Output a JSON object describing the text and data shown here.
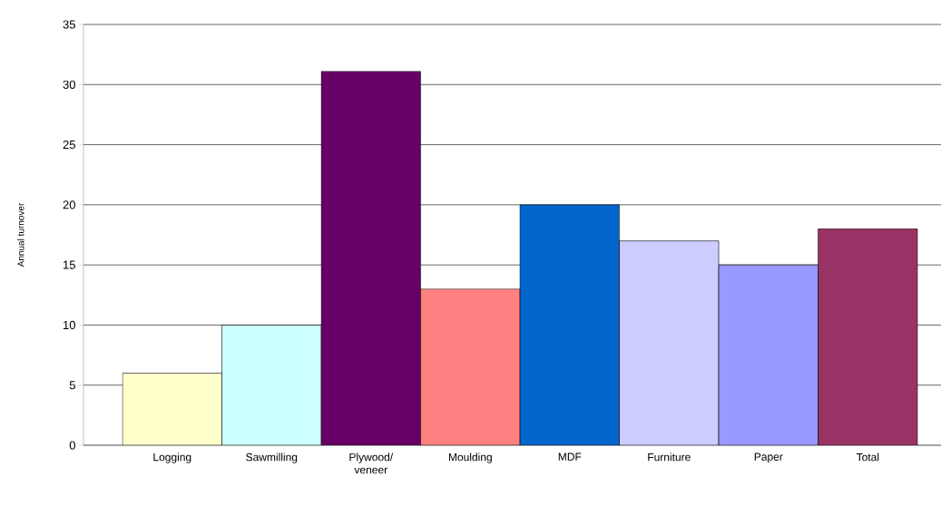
{
  "chart_data": {
    "type": "bar",
    "ylabel": "Annual turnover",
    "categories": [
      "Logging",
      "Sawmilling",
      "Plywood/ veneer",
      "Moulding",
      "MDF",
      "Furniture",
      "Paper",
      "Total"
    ],
    "values": [
      6,
      10,
      31.1,
      13,
      20,
      17,
      15,
      18
    ],
    "colors": [
      "#ffffcc",
      "#ccffff",
      "#660066",
      "#ff8080",
      "#0066cc",
      "#ccccff",
      "#9999ff",
      "#993366"
    ],
    "ylim": [
      0,
      35
    ],
    "yticks": [
      0,
      5,
      10,
      15,
      20,
      25,
      30,
      35
    ],
    "grid": "y"
  }
}
